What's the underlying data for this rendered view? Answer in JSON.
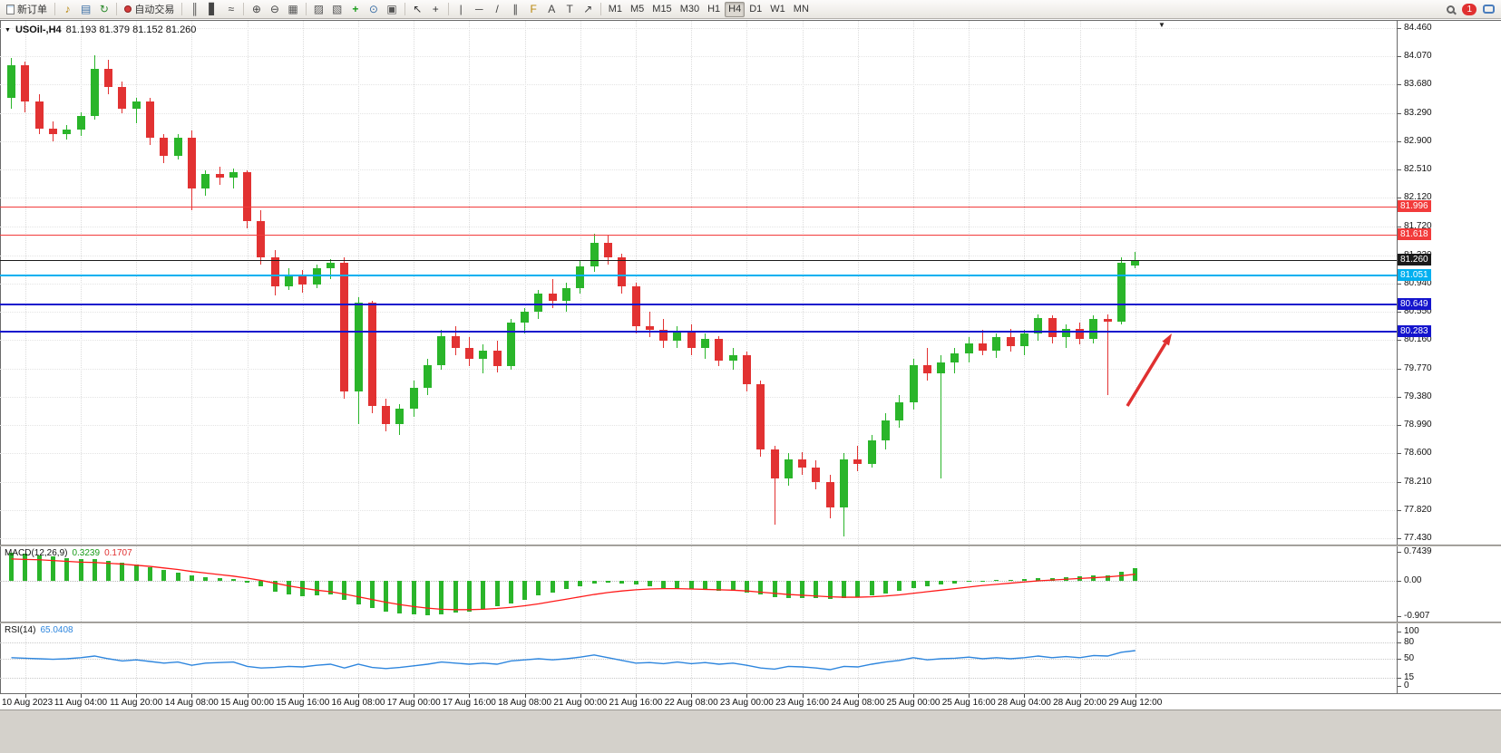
{
  "toolbar": {
    "new_order_label": "新订单",
    "auto_trading_label": "自动交易",
    "timeframes": [
      "M1",
      "M5",
      "M15",
      "M30",
      "H1",
      "H4",
      "D1",
      "W1",
      "MN"
    ],
    "active_timeframe": "H4",
    "notification_count": "1",
    "icons": {
      "speaker": "♪",
      "layout": "▤",
      "refresh": "↻",
      "bar_chart": "║",
      "candle_chart": "▋",
      "line_chart": "≈",
      "zoom_in": "⊕",
      "zoom_out": "⊖",
      "grid": "▦",
      "tile": "▨",
      "cascade": "▧",
      "indicators": "+",
      "period": "⊙",
      "template": "▣",
      "cursor": "↖",
      "crosshair": "+",
      "vline": "|",
      "hline": "─",
      "trendline": "/",
      "channel": "∥",
      "fibonacci": "F",
      "text": "A",
      "label": "T",
      "arrow_tool": "↗",
      "marker": "▼"
    }
  },
  "chart_header": {
    "symbol": "USOil-,H4",
    "ohlc": "81.193 81.379 81.152 81.260"
  },
  "chart_data": [
    {
      "type": "candlestick",
      "title": "USOil-,H4",
      "ohlc": {
        "open": "81.193",
        "high": "81.379",
        "low": "81.152",
        "close": "81.260"
      },
      "ylim": [
        77.43,
        84.46
      ],
      "y_ticks": [
        "84.460",
        "84.070",
        "83.680",
        "83.290",
        "82.900",
        "82.510",
        "82.120",
        "81.720",
        "81.330",
        "80.940",
        "80.550",
        "80.160",
        "79.770",
        "79.380",
        "78.990",
        "78.600",
        "78.210",
        "77.820",
        "77.430"
      ],
      "x_labels": [
        "10 Aug 2023",
        "11 Aug 04:00",
        "11 Aug 20:00",
        "14 Aug 08:00",
        "15 Aug 00:00",
        "15 Aug 16:00",
        "16 Aug 08:00",
        "17 Aug 00:00",
        "17 Aug 16:00",
        "18 Aug 08:00",
        "21 Aug 00:00",
        "21 Aug 16:00",
        "22 Aug 08:00",
        "23 Aug 00:00",
        "23 Aug 16:00",
        "24 Aug 08:00",
        "25 Aug 00:00",
        "25 Aug 16:00",
        "28 Aug 04:00",
        "28 Aug 20:00",
        "29 Aug 12:00"
      ],
      "colors": {
        "up": "#2ab52a",
        "down": "#e23232"
      },
      "levels": [
        {
          "price": 81.996,
          "label": "81.996",
          "color": "#f23b3b",
          "thickness": 1
        },
        {
          "price": 81.618,
          "label": "81.618",
          "color": "#f23b3b",
          "thickness": 1
        },
        {
          "price": 81.26,
          "label": "81.260",
          "color": "#1a1a1a",
          "thickness": 1
        },
        {
          "price": 81.051,
          "label": "81.051",
          "color": "#00b0f0",
          "thickness": 2
        },
        {
          "price": 80.649,
          "label": "80.649",
          "color": "#1515cd",
          "thickness": 2
        },
        {
          "price": 80.283,
          "label": "80.283",
          "color": "#1515cd",
          "thickness": 2
        }
      ],
      "annotations": [
        {
          "type": "arrow",
          "color": "#e03030"
        }
      ],
      "candles": [
        [
          83.5,
          84.05,
          83.35,
          83.95
        ],
        [
          83.95,
          84.0,
          83.3,
          83.45
        ],
        [
          83.45,
          83.55,
          83.0,
          83.08
        ],
        [
          83.08,
          83.18,
          82.9,
          83.0
        ],
        [
          83.0,
          83.12,
          82.92,
          83.06
        ],
        [
          83.06,
          83.3,
          82.98,
          83.25
        ],
        [
          83.25,
          84.08,
          83.2,
          83.9
        ],
        [
          83.9,
          84.02,
          83.55,
          83.65
        ],
        [
          83.65,
          83.72,
          83.28,
          83.35
        ],
        [
          83.35,
          83.5,
          83.15,
          83.45
        ],
        [
          83.45,
          83.5,
          82.85,
          82.95
        ],
        [
          82.95,
          83.0,
          82.6,
          82.7
        ],
        [
          82.7,
          83.0,
          82.65,
          82.95
        ],
        [
          82.95,
          83.05,
          81.95,
          82.25
        ],
        [
          82.25,
          82.5,
          82.15,
          82.45
        ],
        [
          82.45,
          82.55,
          82.3,
          82.4
        ],
        [
          82.4,
          82.52,
          82.25,
          82.48
        ],
        [
          82.48,
          82.5,
          81.7,
          81.8
        ],
        [
          81.8,
          81.95,
          81.2,
          81.3
        ],
        [
          81.3,
          81.4,
          80.78,
          80.9
        ],
        [
          80.9,
          81.15,
          80.85,
          81.05
        ],
        [
          81.05,
          81.12,
          80.82,
          80.92
        ],
        [
          80.92,
          81.2,
          80.88,
          81.15
        ],
        [
          81.15,
          81.28,
          81.0,
          81.22
        ],
        [
          81.22,
          81.3,
          79.35,
          79.45
        ],
        [
          79.45,
          80.75,
          79.0,
          80.68
        ],
        [
          80.68,
          80.7,
          79.15,
          79.25
        ],
        [
          79.25,
          79.35,
          78.9,
          79.0
        ],
        [
          79.0,
          79.28,
          78.85,
          79.22
        ],
        [
          79.22,
          79.6,
          79.1,
          79.5
        ],
        [
          79.5,
          79.9,
          79.4,
          79.82
        ],
        [
          79.82,
          80.3,
          79.75,
          80.22
        ],
        [
          80.22,
          80.35,
          79.95,
          80.05
        ],
        [
          80.05,
          80.2,
          79.8,
          79.9
        ],
        [
          79.9,
          80.1,
          79.7,
          80.02
        ],
        [
          80.02,
          80.15,
          79.72,
          79.8
        ],
        [
          79.8,
          80.45,
          79.75,
          80.4
        ],
        [
          80.4,
          80.6,
          80.25,
          80.55
        ],
        [
          80.55,
          80.85,
          80.45,
          80.8
        ],
        [
          80.8,
          81.0,
          80.6,
          80.7
        ],
        [
          80.7,
          80.95,
          80.55,
          80.88
        ],
        [
          80.88,
          81.25,
          80.8,
          81.18
        ],
        [
          81.18,
          81.62,
          81.1,
          81.5
        ],
        [
          81.5,
          81.6,
          81.2,
          81.3
        ],
        [
          81.3,
          81.35,
          80.8,
          80.9
        ],
        [
          80.9,
          80.95,
          80.25,
          80.35
        ],
        [
          80.35,
          80.55,
          80.2,
          80.3
        ],
        [
          80.3,
          80.45,
          80.05,
          80.15
        ],
        [
          80.15,
          80.35,
          80.05,
          80.28
        ],
        [
          80.28,
          80.38,
          79.95,
          80.05
        ],
        [
          80.05,
          80.25,
          79.9,
          80.18
        ],
        [
          80.18,
          80.22,
          79.8,
          79.88
        ],
        [
          79.88,
          80.05,
          79.75,
          79.95
        ],
        [
          79.95,
          80.0,
          79.45,
          79.55
        ],
        [
          79.55,
          79.6,
          78.55,
          78.65
        ],
        [
          78.65,
          78.7,
          77.62,
          78.25
        ],
        [
          78.25,
          78.6,
          78.15,
          78.52
        ],
        [
          78.52,
          78.62,
          78.3,
          78.4
        ],
        [
          78.4,
          78.5,
          78.1,
          78.2
        ],
        [
          78.2,
          78.3,
          77.7,
          77.85
        ],
        [
          77.85,
          78.6,
          77.45,
          78.52
        ],
        [
          78.52,
          78.7,
          78.35,
          78.45
        ],
        [
          78.45,
          78.85,
          78.4,
          78.78
        ],
        [
          78.78,
          79.15,
          78.65,
          79.05
        ],
        [
          79.05,
          79.4,
          78.95,
          79.3
        ],
        [
          79.3,
          79.9,
          79.2,
          79.82
        ],
        [
          79.82,
          80.05,
          79.6,
          79.7
        ],
        [
          79.7,
          79.95,
          78.25,
          79.85
        ],
        [
          79.85,
          80.05,
          79.7,
          79.98
        ],
        [
          79.98,
          80.2,
          79.85,
          80.12
        ],
        [
          80.12,
          80.3,
          79.95,
          80.02
        ],
        [
          80.02,
          80.25,
          79.92,
          80.2
        ],
        [
          80.2,
          80.32,
          80.0,
          80.08
        ],
        [
          80.08,
          80.3,
          79.95,
          80.25
        ],
        [
          80.25,
          80.52,
          80.15,
          80.46
        ],
        [
          80.46,
          80.5,
          80.12,
          80.2
        ],
        [
          80.2,
          80.38,
          80.05,
          80.32
        ],
        [
          80.32,
          80.4,
          80.1,
          80.18
        ],
        [
          80.18,
          80.5,
          80.12,
          80.45
        ],
        [
          80.45,
          80.52,
          79.4,
          80.42
        ],
        [
          80.42,
          81.3,
          80.38,
          81.22
        ],
        [
          81.193,
          81.379,
          81.152,
          81.26
        ]
      ]
    },
    {
      "type": "bar",
      "name": "MACD(12,26,9)",
      "value_main": "0.3239",
      "value_signal": "0.1707",
      "ylim": [
        -0.907,
        0.7439
      ],
      "y_ticks": [
        "0.7439",
        "0.00",
        "-0.907"
      ],
      "colors": {
        "histogram": "#2ab52a",
        "signal": "#ff1a1a"
      },
      "histogram": [
        0.72,
        0.7,
        0.66,
        0.62,
        0.58,
        0.55,
        0.56,
        0.52,
        0.46,
        0.42,
        0.36,
        0.28,
        0.22,
        0.14,
        0.1,
        0.07,
        0.05,
        -0.04,
        -0.15,
        -0.28,
        -0.36,
        -0.4,
        -0.38,
        -0.34,
        -0.5,
        -0.6,
        -0.7,
        -0.78,
        -0.84,
        -0.87,
        -0.88,
        -0.86,
        -0.82,
        -0.78,
        -0.72,
        -0.66,
        -0.58,
        -0.48,
        -0.38,
        -0.3,
        -0.22,
        -0.14,
        -0.08,
        -0.05,
        -0.06,
        -0.1,
        -0.14,
        -0.18,
        -0.2,
        -0.22,
        -0.23,
        -0.25,
        -0.26,
        -0.3,
        -0.36,
        -0.42,
        -0.45,
        -0.44,
        -0.44,
        -0.46,
        -0.44,
        -0.42,
        -0.38,
        -0.32,
        -0.26,
        -0.18,
        -0.13,
        -0.1,
        -0.07,
        -0.03,
        0.0,
        0.02,
        0.03,
        0.05,
        0.07,
        0.08,
        0.1,
        0.11,
        0.13,
        0.15,
        0.24,
        0.32
      ],
      "signal": [
        0.56,
        0.55,
        0.54,
        0.52,
        0.5,
        0.48,
        0.47,
        0.45,
        0.43,
        0.4,
        0.37,
        0.33,
        0.29,
        0.24,
        0.2,
        0.16,
        0.12,
        0.07,
        0.01,
        -0.06,
        -0.13,
        -0.19,
        -0.24,
        -0.28,
        -0.34,
        -0.41,
        -0.48,
        -0.55,
        -0.61,
        -0.66,
        -0.7,
        -0.73,
        -0.74,
        -0.74,
        -0.73,
        -0.71,
        -0.68,
        -0.64,
        -0.59,
        -0.53,
        -0.47,
        -0.41,
        -0.35,
        -0.3,
        -0.26,
        -0.23,
        -0.21,
        -0.2,
        -0.2,
        -0.21,
        -0.22,
        -0.23,
        -0.24,
        -0.26,
        -0.29,
        -0.32,
        -0.35,
        -0.37,
        -0.39,
        -0.41,
        -0.42,
        -0.42,
        -0.41,
        -0.39,
        -0.36,
        -0.32,
        -0.28,
        -0.24,
        -0.2,
        -0.16,
        -0.12,
        -0.09,
        -0.06,
        -0.03,
        0.0,
        0.02,
        0.04,
        0.06,
        0.08,
        0.1,
        0.13,
        0.17
      ]
    },
    {
      "type": "line",
      "name": "RSI(14)",
      "value": "65.0408",
      "ylim": [
        0,
        100
      ],
      "y_ticks": [
        100,
        80,
        50,
        15,
        0
      ],
      "levels": [
        80,
        50,
        15
      ],
      "colors": {
        "line": "#2e86de"
      },
      "values": [
        52,
        51,
        50,
        49,
        50,
        52,
        55,
        50,
        46,
        48,
        45,
        42,
        44,
        38,
        42,
        43,
        44,
        36,
        33,
        34,
        36,
        35,
        38,
        40,
        33,
        40,
        34,
        32,
        34,
        37,
        40,
        44,
        42,
        40,
        42,
        40,
        46,
        48,
        50,
        48,
        50,
        53,
        57,
        52,
        47,
        42,
        43,
        41,
        44,
        41,
        43,
        40,
        42,
        38,
        33,
        31,
        36,
        35,
        33,
        30,
        36,
        35,
        40,
        44,
        47,
        52,
        48,
        50,
        51,
        53,
        50,
        52,
        50,
        52,
        55,
        52,
        54,
        52,
        56,
        55,
        62,
        65
      ]
    }
  ]
}
